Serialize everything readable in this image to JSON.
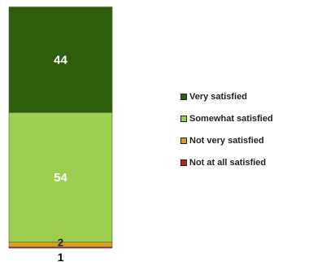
{
  "chart_data": {
    "type": "bar",
    "stacked": true,
    "categories": [
      "1"
    ],
    "series": [
      {
        "name": "Very satisfied",
        "values": [
          44
        ],
        "color": "#2f5e0b"
      },
      {
        "name": "Somewhat satisfied",
        "values": [
          54
        ],
        "color": "#9dce4e"
      },
      {
        "name": "Not very satisfied",
        "values": [
          2
        ],
        "color": "#d6a21b"
      },
      {
        "name": "Not at all satisfied",
        "values": [
          0
        ],
        "color": "#b8281a"
      }
    ],
    "ylim": [
      0,
      100
    ],
    "legend_position": "right",
    "grid": false
  }
}
